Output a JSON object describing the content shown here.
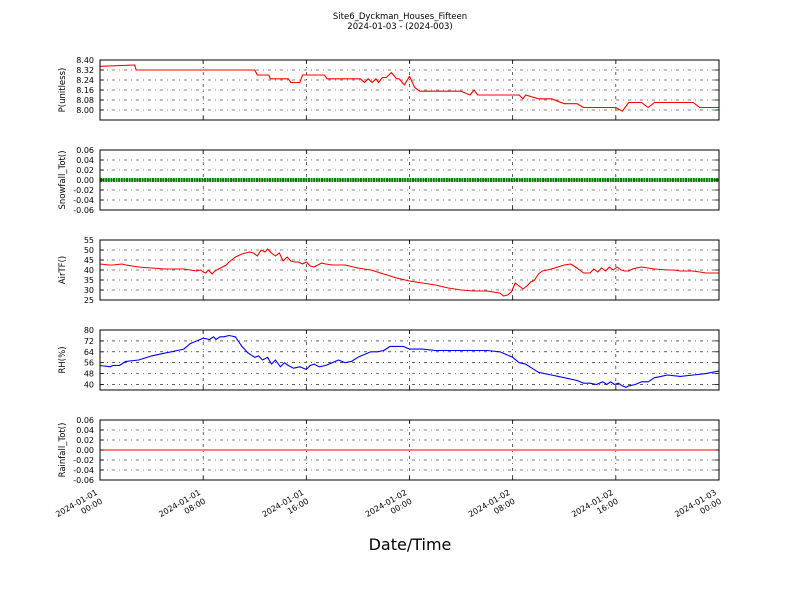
{
  "title_lines": [
    "Site6_Dyckman_Houses_Fifteen",
    "2024-01-03 - (2024-003)"
  ],
  "xlabel": "Date/Time",
  "chart_data": [
    {
      "type": "line",
      "ylabel": "P(unitless)",
      "ylim": [
        7.92,
        8.4
      ],
      "yticks": [
        "8.40",
        "8.32",
        "8.24",
        "8.16",
        "8.08",
        "8.00"
      ],
      "ytick_values": [
        8.4,
        8.32,
        8.24,
        8.16,
        8.08,
        8.0
      ],
      "color": "#ff0000",
      "marker": "none",
      "x_hours": [
        0,
        2.7,
        2.8,
        3.0,
        6,
        7,
        8,
        9,
        10,
        11,
        12,
        12.2,
        13.1,
        13.2,
        14.6,
        14.8,
        15.5,
        15.7,
        17.4,
        17.6,
        20.2,
        20.5,
        20.8,
        21.1,
        21.4,
        21.6,
        21.9,
        22.2,
        22.6,
        23.0,
        23.2,
        23.6,
        24.0,
        24.4,
        24.8,
        25.2,
        25.5,
        26.0,
        27.0,
        28.0,
        28.7,
        29.0,
        29.3,
        29.6,
        30.0,
        31.0,
        32.0,
        32.5,
        32.8,
        33.0,
        34.0,
        35.0,
        36.0,
        36.5,
        37.0,
        37.5,
        38.0,
        39.0,
        40.0,
        40.5,
        41.0,
        42.0,
        42.5,
        43.0,
        44.0,
        44.5,
        45.0,
        46.0,
        46.5,
        47.0,
        48.0
      ],
      "y": [
        8.35,
        8.36,
        8.32,
        8.32,
        8.32,
        8.32,
        8.32,
        8.32,
        8.32,
        8.32,
        8.32,
        8.28,
        8.28,
        8.25,
        8.25,
        8.22,
        8.22,
        8.28,
        8.28,
        8.25,
        8.25,
        8.22,
        8.25,
        8.22,
        8.25,
        8.22,
        8.26,
        8.26,
        8.3,
        8.25,
        8.25,
        8.2,
        8.27,
        8.18,
        8.15,
        8.15,
        8.15,
        8.15,
        8.15,
        8.15,
        8.12,
        8.16,
        8.12,
        8.12,
        8.12,
        8.12,
        8.12,
        8.12,
        8.09,
        8.12,
        8.09,
        8.09,
        8.05,
        8.05,
        8.05,
        8.02,
        8.02,
        8.02,
        8.02,
        7.99,
        8.06,
        8.06,
        8.02,
        8.06,
        8.06,
        8.06,
        8.06,
        8.06,
        8.02,
        8.02,
        8.02
      ]
    },
    {
      "type": "line",
      "ylabel": "Snowfall_Tot()",
      "ylim": [
        -0.06,
        0.06
      ],
      "yticks": [
        "0.06",
        "0.04",
        "0.02",
        "0.00",
        "-0.02",
        "-0.04",
        "-0.06"
      ],
      "ytick_values": [
        0.06,
        0.04,
        0.02,
        0.0,
        -0.02,
        -0.04,
        -0.06
      ],
      "color": "#008000",
      "marker": "dots",
      "x_hours": [
        0,
        48
      ],
      "y": [
        0.0,
        0.0
      ]
    },
    {
      "type": "line",
      "ylabel": "AirTF()",
      "ylim": [
        25,
        55
      ],
      "yticks": [
        "55",
        "50",
        "45",
        "40",
        "35",
        "30",
        "25"
      ],
      "ytick_values": [
        55,
        50,
        45,
        40,
        35,
        30,
        25
      ],
      "color": "#ff0000",
      "marker": "none",
      "x_hours": [
        0,
        0.7,
        1.0,
        1.7,
        2.0,
        2.5,
        3.0,
        4.0,
        5.0,
        6.0,
        6.5,
        7.0,
        7.5,
        7.8,
        8.0,
        8.2,
        8.4,
        8.7,
        8.9,
        9.2,
        9.5,
        9.8,
        10.0,
        10.5,
        11.0,
        11.3,
        11.6,
        11.9,
        12.2,
        12.5,
        12.8,
        13.0,
        13.3,
        13.6,
        13.9,
        14.2,
        14.5,
        14.8,
        15.1,
        15.4,
        15.7,
        16.0,
        16.3,
        16.6,
        16.9,
        17.2,
        17.5,
        18.0,
        19.0,
        20.0,
        21.0,
        22.0,
        23.0,
        24.0,
        25.0,
        26.0,
        27.0,
        28.0,
        29.0,
        30.0,
        31.0,
        31.3,
        31.6,
        31.9,
        32.2,
        32.5,
        32.8,
        33.1,
        33.4,
        33.7,
        34.0,
        34.3,
        34.7,
        35.0,
        35.5,
        36.0,
        36.5,
        37.0,
        37.5,
        38.0,
        38.3,
        38.6,
        38.9,
        39.2,
        39.5,
        39.8,
        40.1,
        40.4,
        40.7,
        41.0,
        41.3,
        41.6,
        42.0,
        43.0,
        44.0,
        44.5,
        45.0,
        46.0,
        47.0,
        48.0
      ],
      "y": [
        43,
        42.5,
        42.5,
        43,
        42.5,
        42,
        41.5,
        41,
        40.5,
        40.5,
        40.5,
        40,
        39.5,
        40,
        39,
        38.5,
        40,
        38,
        39.5,
        40.5,
        41.5,
        42.5,
        44,
        46.5,
        48,
        48.5,
        49,
        48.5,
        47,
        50,
        49,
        50.5,
        48.5,
        47,
        48.5,
        44.5,
        46.5,
        44.5,
        44,
        44,
        43,
        44,
        42,
        41.5,
        42.5,
        43.5,
        43,
        42.5,
        42.5,
        41,
        40,
        38,
        36,
        34.5,
        33.5,
        32.5,
        31,
        30,
        29.5,
        29.5,
        28.5,
        27,
        27.5,
        29,
        33.5,
        32,
        30.5,
        32,
        34,
        35,
        38,
        39.5,
        40,
        40.5,
        41.5,
        42.5,
        43,
        41,
        38.5,
        38.5,
        40.5,
        39,
        41,
        39.5,
        41.5,
        40,
        41.5,
        40,
        39.5,
        39.5,
        40.5,
        41,
        41.5,
        40.5,
        40,
        40,
        39.5,
        39.5,
        38.5,
        38.5
      ]
    },
    {
      "type": "line",
      "ylabel": "RH(%)",
      "ylim": [
        36,
        80
      ],
      "yticks": [
        "80",
        "72",
        "64",
        "56",
        "48",
        "40"
      ],
      "ytick_values": [
        80,
        72,
        64,
        56,
        48,
        40
      ],
      "color": "#0000ff",
      "marker": "none",
      "x_hours": [
        0,
        0.8,
        1.0,
        1.5,
        2.0,
        3.0,
        4.0,
        5.0,
        6.0,
        6.5,
        7.0,
        7.5,
        8.0,
        8.5,
        8.8,
        9.0,
        9.3,
        9.6,
        10.0,
        10.5,
        11.0,
        11.5,
        12.0,
        12.3,
        12.6,
        13.0,
        13.3,
        13.6,
        14.0,
        14.3,
        14.6,
        15.0,
        15.5,
        16.0,
        16.3,
        16.6,
        17.0,
        17.5,
        18.0,
        18.5,
        19.0,
        19.5,
        20.0,
        20.5,
        21.0,
        21.5,
        22.0,
        22.5,
        23.0,
        23.5,
        24.0,
        25.0,
        26.0,
        27.0,
        28.0,
        29.0,
        30.0,
        31.0,
        31.5,
        32.0,
        32.5,
        33.0,
        33.5,
        34.0,
        35.0,
        36.0,
        37.0,
        37.5,
        38.0,
        38.5,
        39.0,
        39.3,
        39.6,
        39.9,
        40.2,
        40.5,
        40.8,
        41.0,
        41.5,
        42.0,
        42.5,
        43.0,
        43.5,
        44.0,
        45.0,
        46.0,
        47.0,
        48.0
      ],
      "y": [
        54,
        53,
        54,
        54,
        57,
        58,
        61,
        63,
        65,
        66,
        70,
        72,
        74,
        73,
        75,
        73,
        75,
        75,
        76,
        75,
        68,
        63,
        60,
        61,
        58,
        60,
        55,
        58,
        53,
        56,
        54,
        52,
        53,
        51,
        54,
        55,
        53,
        54,
        56,
        58,
        56,
        57,
        60,
        62,
        64,
        64,
        65,
        68,
        68,
        68,
        66,
        66,
        65,
        65,
        65,
        65,
        65,
        64,
        62,
        60,
        56,
        55,
        52,
        49,
        47,
        45,
        43,
        41,
        41,
        40,
        42,
        40,
        42,
        40,
        41,
        39,
        38,
        39,
        40,
        42,
        42,
        45,
        46,
        47,
        46,
        47,
        48,
        50
      ]
    },
    {
      "type": "line",
      "ylabel": "Rainfall_Tot()",
      "ylim": [
        -0.06,
        0.06
      ],
      "yticks": [
        "0.06",
        "0.04",
        "0.02",
        "0.00",
        "-0.02",
        "-0.04",
        "-0.06"
      ],
      "ytick_values": [
        0.06,
        0.04,
        0.02,
        0.0,
        -0.02,
        -0.04,
        -0.06
      ],
      "color": "#ff0000",
      "marker": "none",
      "x_hours": [
        0,
        48
      ],
      "y": [
        0.0,
        0.0
      ]
    }
  ],
  "x_axis": {
    "start": "2024-01-01 00:00",
    "end": "2024-01-03 00:00",
    "tick_hours": [
      0,
      8,
      16,
      24,
      32,
      40,
      48
    ],
    "tick_labels": [
      [
        "2024-01-01",
        "00:00"
      ],
      [
        "2024-01-01",
        "08:00"
      ],
      [
        "2024-01-01",
        "16:00"
      ],
      [
        "2024-01-02",
        "00:00"
      ],
      [
        "2024-01-02",
        "08:00"
      ],
      [
        "2024-01-02",
        "16:00"
      ],
      [
        "2024-01-03",
        "00:00"
      ]
    ]
  }
}
